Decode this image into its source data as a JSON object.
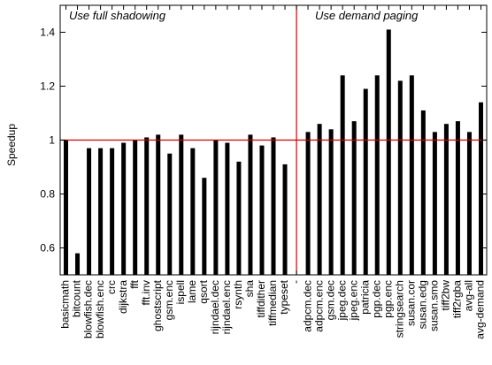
{
  "chart_data": {
    "type": "bar",
    "title": "",
    "xlabel": "",
    "ylabel": "Speedup",
    "ylim": [
      0.5,
      1.5
    ],
    "yticks": [
      0.6,
      0.8,
      1,
      1.2,
      1.4
    ],
    "ytick_labels": [
      "0.6",
      "0.8",
      "1",
      "1.2",
      "1.4"
    ],
    "reference_line": 1.0,
    "reference_color": "#cc0000",
    "bar_color": "#000000",
    "grid": false,
    "categories": [
      "basicmath",
      "bitcount",
      "blowfish.dec",
      "blowfish.enc",
      "crc",
      "dijkstra",
      "fft",
      "fft.inv",
      "ghostscript",
      "gsm.enc",
      "ispell",
      "lame",
      "qsort",
      "rijndael.dec",
      "rijndael.enc",
      "rsynth",
      "sha",
      "tiffdither",
      "tiffmedian",
      "typeset",
      "-",
      "adpcm.dec",
      "adpcm.enc",
      "gsm.dec",
      "jpeg.dec",
      "jpeg.enc",
      "patricia",
      "pgp.dec",
      "pgp.enc",
      "stringsearch",
      "susan.cor",
      "susan.edg",
      "susan.smo",
      "tiff2bw",
      "tiff2rgba",
      "avg-all",
      "avg-demand"
    ],
    "values": [
      1.0,
      0.58,
      0.97,
      0.97,
      0.97,
      0.99,
      1.0,
      1.01,
      1.02,
      0.95,
      1.02,
      0.97,
      0.86,
      1.0,
      0.99,
      0.92,
      1.02,
      0.98,
      1.01,
      0.91,
      null,
      1.03,
      1.06,
      1.04,
      1.24,
      1.07,
      1.19,
      1.24,
      1.41,
      1.22,
      1.24,
      1.11,
      1.03,
      1.06,
      1.07,
      1.03,
      1.14
    ],
    "divider_index": 20,
    "annotations": {
      "left": "Use full shadowing",
      "right": "Use demand paging"
    }
  }
}
